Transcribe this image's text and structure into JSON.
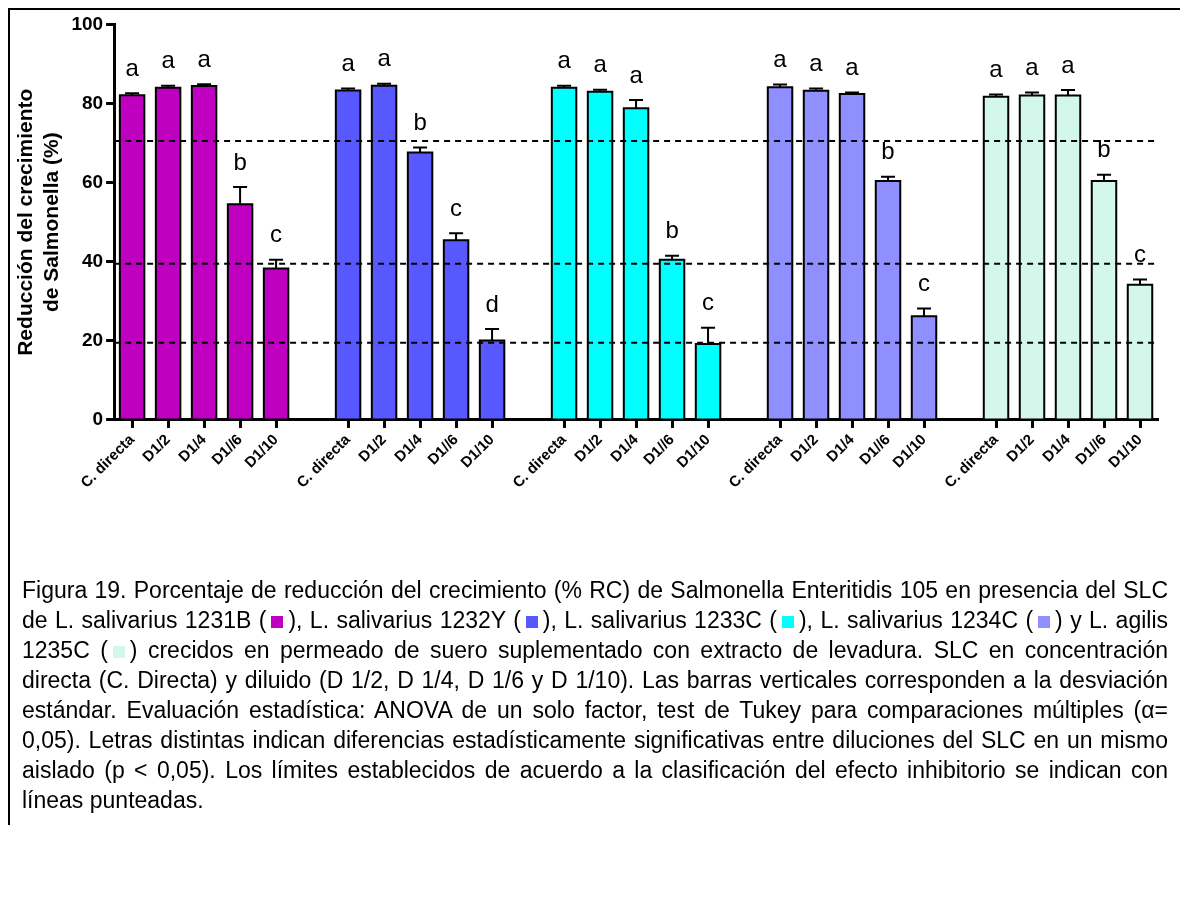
{
  "chart_data": {
    "type": "bar",
    "ylabel": "Reducción del crecimiento\nde Salmonella (%)",
    "categories": [
      "C. directa",
      "D1/2",
      "D1/4",
      "D1//6",
      "D1/10",
      null,
      "C. directa",
      "D1/2",
      "D1/4",
      "D1//6",
      "D1/10",
      null,
      "C. directa",
      "D1/2",
      "D1/4",
      "D1//6",
      "D1/10",
      null,
      "C. directa",
      "D1/2",
      "D1/4",
      "D1//6",
      "D1/10",
      null,
      "C. directa",
      "D1/2",
      "D1/4",
      "D1//6",
      "D1/10"
    ],
    "series": [
      {
        "color": "#c000c0",
        "values": [
          82.1,
          84.0,
          84.4,
          54.5,
          38.3,
          null,
          null,
          null,
          null,
          null,
          null,
          null,
          null,
          null,
          null,
          null,
          null,
          null,
          null,
          null,
          null,
          null,
          null,
          null,
          null,
          null,
          null,
          null,
          null
        ],
        "errors": [
          0.5,
          0.5,
          0.5,
          4.4,
          2.2,
          null,
          null,
          null,
          null,
          null,
          null,
          null,
          null,
          null,
          null,
          null,
          null,
          null,
          null,
          null,
          null,
          null,
          null,
          null,
          null,
          null,
          null,
          null,
          null
        ],
        "value_labels": [
          "a",
          "a",
          "a",
          "b",
          "c",
          null,
          null,
          null,
          null,
          null,
          null,
          null,
          null,
          null,
          null,
          null,
          null,
          null,
          null,
          null,
          null,
          null,
          null,
          null,
          null,
          null,
          null,
          null,
          null
        ]
      },
      {
        "color": "#5858ff",
        "values": [
          null,
          null,
          null,
          null,
          null,
          null,
          83.3,
          84.5,
          67.6,
          45.4,
          20.1,
          null,
          null,
          null,
          null,
          null,
          null,
          null,
          null,
          null,
          null,
          null,
          null,
          null,
          null,
          null,
          null,
          null,
          null
        ],
        "errors": [
          null,
          null,
          null,
          null,
          null,
          null,
          0.5,
          0.5,
          1.3,
          1.8,
          2.9,
          null,
          null,
          null,
          null,
          null,
          null,
          null,
          null,
          null,
          null,
          null,
          null,
          null,
          null,
          null,
          null,
          null,
          null
        ],
        "value_labels": [
          null,
          null,
          null,
          null,
          null,
          null,
          "a",
          "a",
          "b",
          "c",
          "d",
          null,
          null,
          null,
          null,
          null,
          null,
          null,
          null,
          null,
          null,
          null,
          null,
          null,
          null,
          null,
          null,
          null,
          null
        ]
      },
      {
        "color": "#00ffff",
        "values": [
          null,
          null,
          null,
          null,
          null,
          null,
          null,
          null,
          null,
          null,
          null,
          null,
          84.0,
          83.0,
          78.8,
          40.5,
          19.2,
          null,
          null,
          null,
          null,
          null,
          null,
          null,
          null,
          null,
          null,
          null,
          null
        ],
        "errors": [
          null,
          null,
          null,
          null,
          null,
          null,
          null,
          null,
          null,
          null,
          null,
          null,
          0.5,
          0.5,
          2.1,
          1.0,
          4.1,
          null,
          null,
          null,
          null,
          null,
          null,
          null,
          null,
          null,
          null,
          null,
          null
        ],
        "value_labels": [
          null,
          null,
          null,
          null,
          null,
          null,
          null,
          null,
          null,
          null,
          null,
          null,
          "a",
          "a",
          "a",
          "b",
          "c",
          null,
          null,
          null,
          null,
          null,
          null,
          null,
          null,
          null,
          null,
          null,
          null
        ]
      },
      {
        "color": "#8f8fff",
        "values": [
          null,
          null,
          null,
          null,
          null,
          null,
          null,
          null,
          null,
          null,
          null,
          null,
          null,
          null,
          null,
          null,
          null,
          null,
          84.1,
          83.2,
          82.4,
          60.4,
          26.2,
          null,
          null,
          null,
          null,
          null,
          null
        ],
        "errors": [
          null,
          null,
          null,
          null,
          null,
          null,
          null,
          null,
          null,
          null,
          null,
          null,
          null,
          null,
          null,
          null,
          null,
          null,
          0.7,
          0.6,
          0.4,
          1.1,
          2.0,
          null,
          null,
          null,
          null,
          null,
          null
        ],
        "value_labels": [
          null,
          null,
          null,
          null,
          null,
          null,
          null,
          null,
          null,
          null,
          null,
          null,
          null,
          null,
          null,
          null,
          null,
          null,
          "a",
          "a",
          "a",
          "b",
          "c",
          null,
          null,
          null,
          null,
          null,
          null
        ]
      },
      {
        "color": "#d4f7ec",
        "values": [
          null,
          null,
          null,
          null,
          null,
          null,
          null,
          null,
          null,
          null,
          null,
          null,
          null,
          null,
          null,
          null,
          null,
          null,
          null,
          null,
          null,
          null,
          null,
          null,
          81.7,
          82.0,
          82.0,
          60.4,
          34.2
        ],
        "errors": [
          null,
          null,
          null,
          null,
          null,
          null,
          null,
          null,
          null,
          null,
          null,
          null,
          null,
          null,
          null,
          null,
          null,
          null,
          null,
          null,
          null,
          null,
          null,
          null,
          0.6,
          0.8,
          1.4,
          1.6,
          1.3
        ],
        "value_labels": [
          null,
          null,
          null,
          null,
          null,
          null,
          null,
          null,
          null,
          null,
          null,
          null,
          null,
          null,
          null,
          null,
          null,
          null,
          null,
          null,
          null,
          null,
          null,
          null,
          "a",
          "a",
          "a",
          "b",
          "c"
        ]
      }
    ],
    "ylim": [
      0,
      100
    ],
    "yticks": [
      0,
      20,
      40,
      60,
      80,
      100
    ],
    "ref_lines": [
      {
        "axis": "y",
        "value": 70.5,
        "line_style": "dashed"
      },
      {
        "axis": "y",
        "value": 39.5,
        "line_style": "dashed"
      },
      {
        "axis": "y",
        "value": 19.5,
        "line_style": "dashed"
      }
    ],
    "grid": false,
    "legend": false,
    "annotations": [
      "Figura 19. Porcentaje de reducción del crecimiento (% RC) de Salmonella Enteritidis 105 en presencia del SLC de L. salivarius 1231B (",
      "), L. salivarius 1232Y (",
      "), L. salivarius 1233C (",
      "), L. salivarius 1234C (",
      ") y L. agilis 1235C (",
      ") crecidos en permeado de suero suplementado con extracto de levadura. SLC en concentración directa (C. Directa) y diluido (D 1/2, D 1/4, D 1/6 y D 1/10). Las barras verticales corresponden a la desviación estándar. Evaluación estadística: ANOVA de un solo factor, test de Tukey para comparaciones múltiples (α= 0,05). Letras distintas indican diferencias estadísticamente significativas entre diluciones del SLC en un mismo aislado (p < 0,05). Los límites establecidos de acuerdo a la clasificación del efecto inhibitorio se indican con líneas punteadas."
    ]
  }
}
